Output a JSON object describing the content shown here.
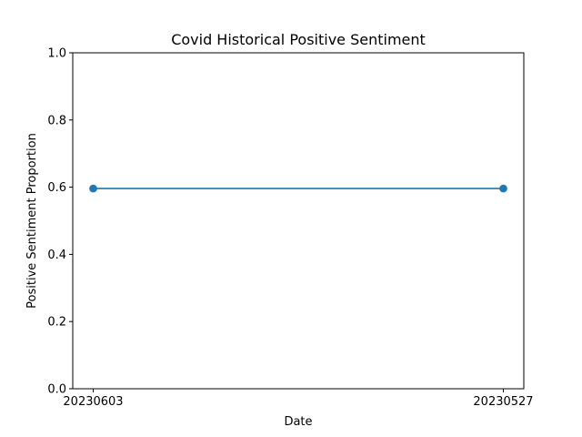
{
  "chart_data": {
    "type": "line",
    "title": "Covid Historical Positive Sentiment",
    "xlabel": "Date",
    "ylabel": "Positive Sentiment Proportion",
    "categories": [
      "20230603",
      "20230527"
    ],
    "series": [
      {
        "values": [
          0.596,
          0.596
        ],
        "color": "#1f77b4"
      }
    ],
    "ylim": [
      0,
      1
    ],
    "yticks": [
      0.0,
      0.2,
      0.4,
      0.6,
      0.8,
      1.0
    ],
    "ytick_labels": [
      "0.0",
      "0.2",
      "0.4",
      "0.6",
      "0.8",
      "1.0"
    ],
    "grid": false,
    "legend": "none",
    "markers": "circle"
  }
}
